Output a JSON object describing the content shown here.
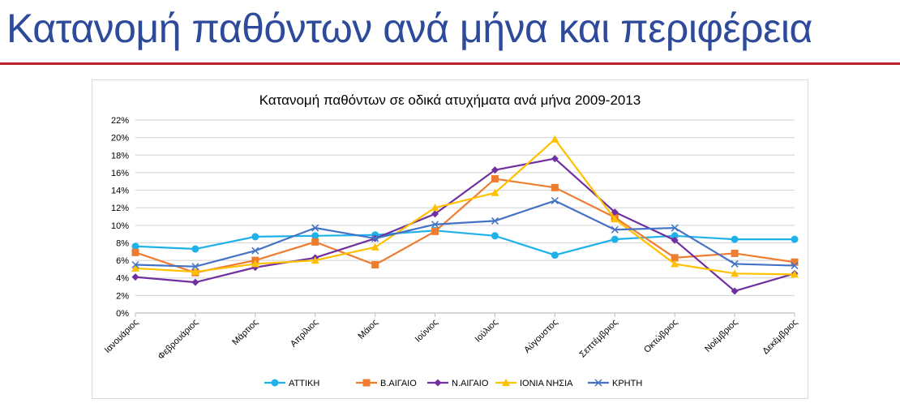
{
  "slide": {
    "title": "Κατανομή παθόντων ανά μήνα και περιφέρεια"
  },
  "chart_data": {
    "type": "line",
    "title": "Κατανομή παθόντων σε οδικά ατυχήματα ανά μήνα 2009-2013",
    "xlabel": "",
    "ylabel": "",
    "categories": [
      "Ιανουάριος",
      "Φεβρουάριος",
      "Μάρτιος",
      "Απρίλιος",
      "Μάιος",
      "Ιούνιος",
      "Ιούλιος",
      "Αύγουστος",
      "Σεπτέμβριος",
      "Οκτώβριος",
      "Νοέμβριος",
      "Δεκέμβριος"
    ],
    "ylim": [
      0,
      22
    ],
    "yticks": [
      "0%",
      "2%",
      "4%",
      "6%",
      "8%",
      "10%",
      "12%",
      "14%",
      "16%",
      "18%",
      "20%",
      "22%"
    ],
    "grid": true,
    "legend": "bottom",
    "series": [
      {
        "name": "ΑΤΤΙΚΗ",
        "color": "#1fb2e8",
        "marker": "circle",
        "values": [
          7.6,
          7.3,
          8.7,
          8.8,
          8.9,
          9.4,
          8.8,
          6.6,
          8.4,
          8.8,
          8.4,
          8.4
        ]
      },
      {
        "name": "Β.ΑΙΓΑΙΟ",
        "color": "#ed7d31",
        "marker": "square",
        "values": [
          6.9,
          4.6,
          6.0,
          8.1,
          5.5,
          9.3,
          15.3,
          14.3,
          10.9,
          6.3,
          6.8,
          5.8
        ]
      },
      {
        "name": "Ν.ΑΙΓΑΙΟ",
        "color": "#7030a0",
        "marker": "diamond",
        "values": [
          4.1,
          3.5,
          5.2,
          6.3,
          8.5,
          11.3,
          16.3,
          17.6,
          11.5,
          8.3,
          2.5,
          4.5
        ]
      },
      {
        "name": "ΙΟΝΙΑ ΝΗΣΙΑ",
        "color": "#ffc000",
        "marker": "triangle",
        "values": [
          5.1,
          4.7,
          5.6,
          6.0,
          7.5,
          12.0,
          13.7,
          19.8,
          10.7,
          5.6,
          4.5,
          4.4
        ]
      },
      {
        "name": "ΚΡΗΤΗ",
        "color": "#4472c4",
        "marker": "x",
        "values": [
          5.5,
          5.3,
          7.1,
          9.7,
          8.5,
          10.1,
          10.5,
          12.8,
          9.5,
          9.7,
          5.6,
          5.4
        ]
      }
    ]
  }
}
